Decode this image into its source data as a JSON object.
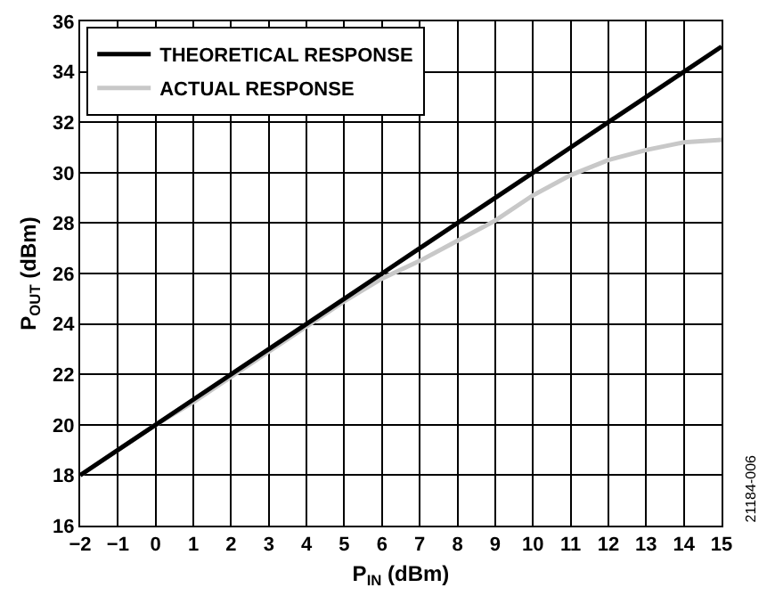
{
  "chart_data": {
    "type": "line",
    "xlabel": "P$_{IN}$ (dBm)",
    "ylabel": "P$_{OUT}$ (dBm)",
    "x": [
      -2,
      -1,
      0,
      1,
      2,
      3,
      4,
      5,
      6,
      7,
      8,
      9,
      10,
      11,
      12,
      13,
      14,
      15
    ],
    "series": [
      {
        "name": "THEORETICAL RESPONSE",
        "color": "#000000",
        "values": [
          18,
          19,
          20,
          21,
          22,
          23,
          24,
          25,
          26,
          27,
          28,
          29,
          30,
          31,
          32,
          33,
          34,
          35
        ]
      },
      {
        "name": "ACTUAL RESPONSE",
        "color": "#c8c8c8",
        "values": [
          18,
          19,
          20,
          20.9,
          21.9,
          22.9,
          23.9,
          24.9,
          25.8,
          26.5,
          27.3,
          28.1,
          29.1,
          29.9,
          30.5,
          30.9,
          31.2,
          31.3
        ]
      }
    ],
    "xlim": [
      -2,
      15
    ],
    "xticks": [
      {
        "value": -2,
        "label": "−2"
      },
      {
        "value": -1,
        "label": "−1"
      },
      0,
      1,
      2,
      3,
      4,
      5,
      6,
      7,
      8,
      9,
      10,
      11,
      12,
      13,
      14,
      15
    ],
    "ylim": [
      16,
      36
    ],
    "yticks": [
      16,
      18,
      20,
      22,
      24,
      26,
      28,
      30,
      32,
      34,
      36
    ],
    "grid": true,
    "legend": "top left",
    "marker": "none",
    "line_style": "solid",
    "annotations": [
      "21184-006"
    ]
  }
}
